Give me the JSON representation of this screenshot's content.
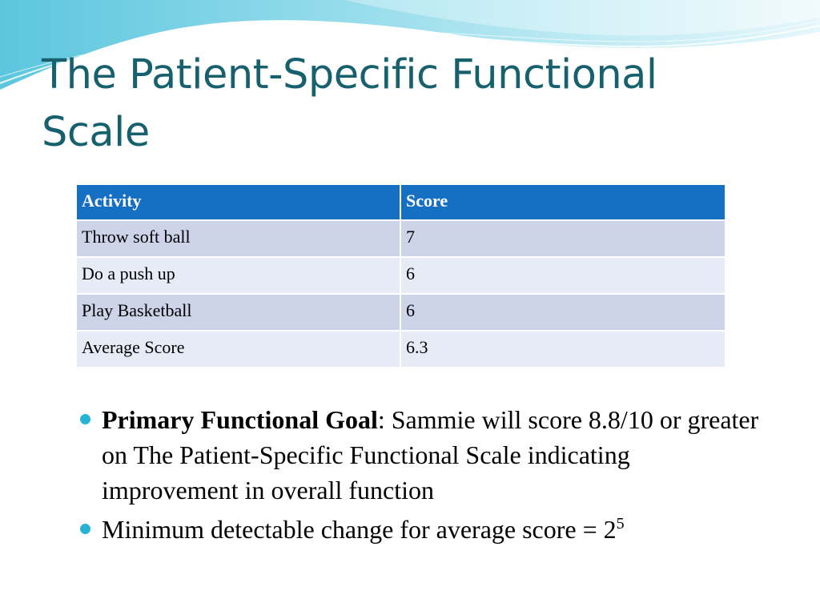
{
  "slide": {
    "title": "The Patient-Specific Functional Scale",
    "table": {
      "headers": [
        "Activity",
        "Score"
      ],
      "rows": [
        [
          "Throw soft ball",
          "7"
        ],
        [
          "Do a push up",
          "6"
        ],
        [
          "Play Basketball",
          "6"
        ],
        [
          "Average Score",
          "6.3"
        ]
      ]
    },
    "bullets": [
      {
        "bold": "Primary Functional Goal",
        "text": ": Sammie will score 8.8/10 or greater on The Patient-Specific Functional Scale indicating improvement in overall function"
      },
      {
        "text": "Minimum detectable change for average score = 2",
        "superscript": "5"
      }
    ]
  },
  "colors": {
    "title": "#17606e",
    "header_fill": "#1570c4",
    "row_odd_fill": "#cdd4e9",
    "row_even_fill": "#e7ebf5",
    "bullet": "#27b3d6",
    "wave_dark": "#7fd3e6",
    "wave_light": "#c9eef6"
  }
}
